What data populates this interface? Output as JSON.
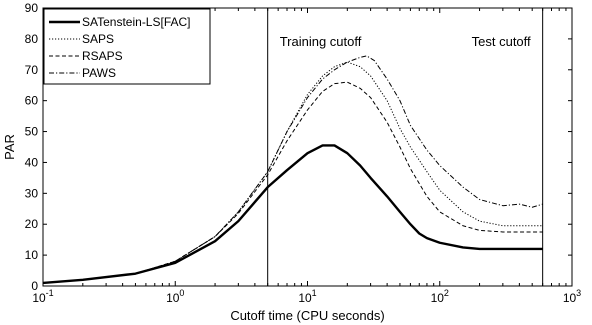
{
  "chart_data": {
    "type": "line",
    "xlabel": "Cutoff time (CPU seconds)",
    "ylabel": "PAR",
    "xscale": "log",
    "xlim": [
      0.1,
      1000
    ],
    "ylim": [
      0,
      90
    ],
    "xticks": [
      {
        "value": 0.1,
        "base": "10",
        "exp": "-1"
      },
      {
        "value": 1,
        "base": "10",
        "exp": "0"
      },
      {
        "value": 10,
        "base": "10",
        "exp": "1"
      },
      {
        "value": 100,
        "base": "10",
        "exp": "2"
      },
      {
        "value": 1000,
        "base": "10",
        "exp": "3"
      }
    ],
    "yticks": [
      "0",
      "10",
      "20",
      "30",
      "40",
      "50",
      "60",
      "70",
      "80",
      "90"
    ],
    "grid": false,
    "legend_position": "top-left",
    "annotations": [
      {
        "label": "Training cutoff",
        "x": 5
      },
      {
        "label": "Test cutoff",
        "x": 600
      }
    ],
    "series": [
      {
        "name": "SATenstein-LS[FAC]",
        "style": "solid-thick",
        "x": [
          0.1,
          0.2,
          0.5,
          1,
          2,
          3,
          5,
          7,
          10,
          13,
          16,
          20,
          25,
          30,
          40,
          50,
          60,
          70,
          80,
          100,
          150,
          200,
          300,
          400,
          600
        ],
        "y": [
          1,
          2,
          4,
          7.5,
          14.5,
          21,
          32,
          37.5,
          43,
          45.5,
          45.5,
          43,
          39,
          35,
          29,
          24,
          20,
          17,
          15.5,
          14,
          12.5,
          12,
          12,
          12,
          12
        ]
      },
      {
        "name": "SAPS",
        "style": "dotted",
        "x": [
          0.1,
          0.2,
          0.5,
          1,
          2,
          3,
          5,
          7,
          10,
          13,
          16,
          20,
          25,
          30,
          40,
          50,
          60,
          80,
          100,
          150,
          200,
          300,
          400,
          600
        ],
        "y": [
          1,
          2,
          4,
          8,
          16,
          24,
          37,
          50,
          62,
          68,
          71,
          72.5,
          71,
          68,
          60,
          51,
          45,
          37,
          31,
          24,
          21,
          19.5,
          19.5,
          19.5
        ]
      },
      {
        "name": "RSAPS",
        "style": "dashed",
        "x": [
          0.1,
          0.2,
          0.5,
          1,
          2,
          3,
          5,
          7,
          10,
          13,
          16,
          20,
          25,
          30,
          40,
          50,
          60,
          80,
          100,
          150,
          200,
          300,
          400,
          600
        ],
        "y": [
          1,
          2,
          4,
          8,
          16,
          23.5,
          36,
          47,
          57,
          63,
          65.5,
          66,
          64,
          61,
          53,
          45,
          38,
          29,
          24,
          19.5,
          18,
          17.5,
          17.5,
          17.5
        ]
      },
      {
        "name": "PAWS",
        "style": "dashdot",
        "x": [
          0.1,
          0.2,
          0.5,
          1,
          2,
          3,
          5,
          7,
          10,
          13,
          16,
          20,
          25,
          28,
          32,
          40,
          50,
          60,
          80,
          100,
          150,
          200,
          300,
          400,
          500,
          600
        ],
        "y": [
          1,
          2,
          4,
          8,
          16,
          24,
          37,
          50,
          61,
          67,
          70,
          72.5,
          74,
          74.5,
          73,
          67,
          60,
          52,
          44,
          39,
          32,
          28,
          26,
          26.5,
          25.5,
          26.5
        ]
      }
    ]
  }
}
